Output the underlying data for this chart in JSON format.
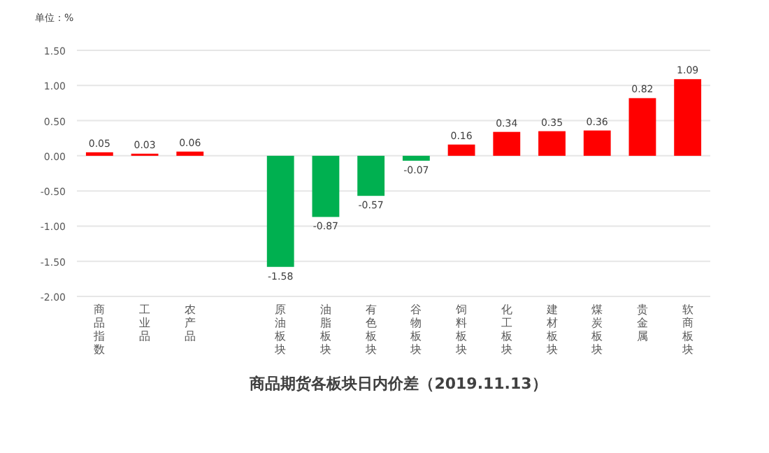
{
  "chart_data": {
    "type": "bar",
    "title": "商品期货各板块日内价差（2019.11.13）",
    "ylabel": "单位：%",
    "categories": [
      "商品指数",
      "工业品",
      "农产品",
      null,
      "原油板块",
      "油脂板块",
      "有色板块",
      "谷物板块",
      "饲料板块",
      "化工板块",
      "建材板块",
      "煤炭板块",
      "贵金属",
      "软商板块"
    ],
    "values": [
      0.05,
      0.03,
      0.06,
      null,
      -1.58,
      -0.87,
      -0.57,
      -0.07,
      0.16,
      0.34,
      0.35,
      0.36,
      0.82,
      1.09
    ],
    "colors": [
      "#ff0000",
      "#ff0000",
      "#ff0000",
      null,
      "#00b050",
      "#00b050",
      "#00b050",
      "#00b050",
      "#ff0000",
      "#ff0000",
      "#ff0000",
      "#ff0000",
      "#ff0000",
      "#ff0000"
    ],
    "ylim": [
      -2.0,
      1.5
    ],
    "yticks": [
      {
        "value": -2.0,
        "label": "-2.00"
      },
      {
        "value": -1.5,
        "label": "-1.50"
      },
      {
        "value": -1.0,
        "label": "-1.00"
      },
      {
        "value": -0.5,
        "label": "-0.50"
      },
      {
        "value": 0,
        "label": "0.00"
      },
      {
        "value": 0.5,
        "label": "0.50"
      },
      {
        "value": 1.0,
        "label": "1.00"
      },
      {
        "value": 1.5,
        "label": "1.50"
      }
    ],
    "grid": "y",
    "data_labels": true
  }
}
